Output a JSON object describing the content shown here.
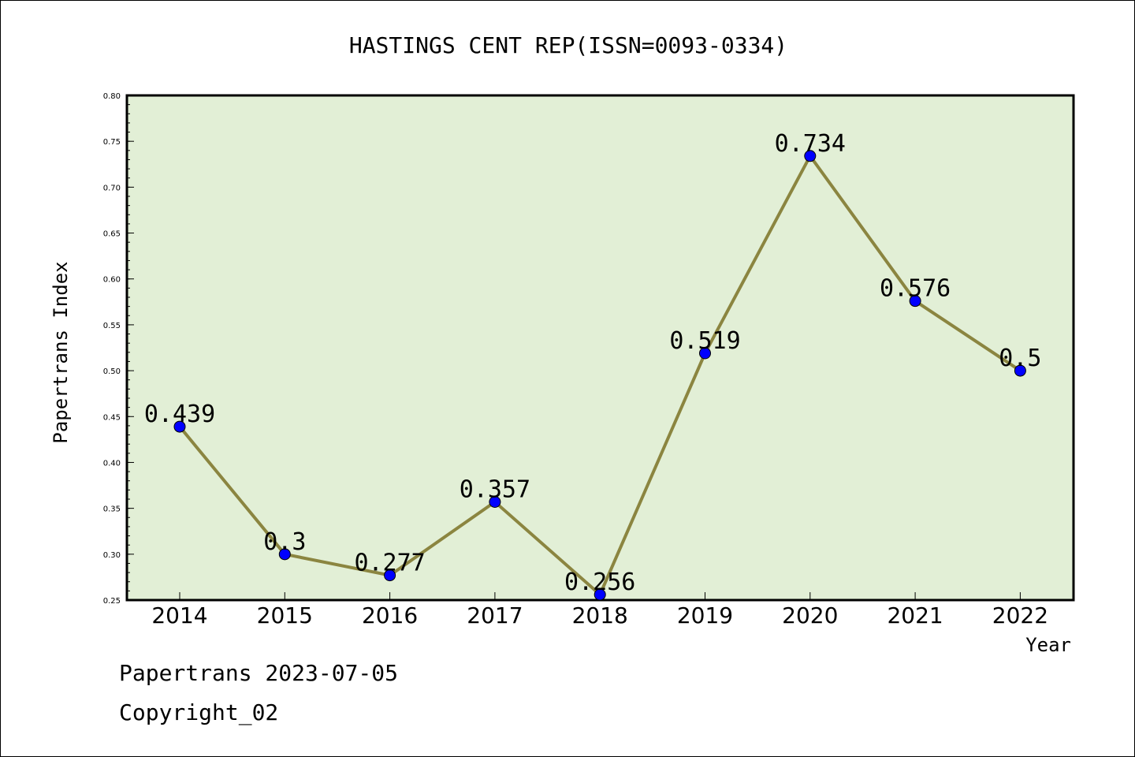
{
  "chart_data": {
    "type": "line",
    "title": "HASTINGS CENT REP(ISSN=0093-0334)",
    "xlabel": "Year",
    "ylabel": "Papertrans Index",
    "categories": [
      "2014",
      "2015",
      "2016",
      "2017",
      "2018",
      "2019",
      "2020",
      "2021",
      "2022"
    ],
    "values": [
      0.439,
      0.3,
      0.277,
      0.357,
      0.256,
      0.519,
      0.734,
      0.576,
      0.5
    ],
    "data_labels": [
      "0.439",
      "0.3",
      "0.277",
      "0.357",
      "0.256",
      "0.519",
      "0.734",
      "0.576",
      "0.5"
    ],
    "yticks": [
      "0.25",
      "0.30",
      "0.35",
      "0.40",
      "0.45",
      "0.50",
      "0.55",
      "0.60",
      "0.65",
      "0.70",
      "0.75",
      "0.80"
    ],
    "ylim": [
      0.25,
      0.8
    ],
    "grid": false,
    "colors": {
      "plot_background": "#e2efd6",
      "line": "#8b8540",
      "marker": "#0000ff"
    }
  },
  "footer": {
    "date_line": "Papertrans 2023-07-05",
    "copyright": "Copyright_02"
  }
}
